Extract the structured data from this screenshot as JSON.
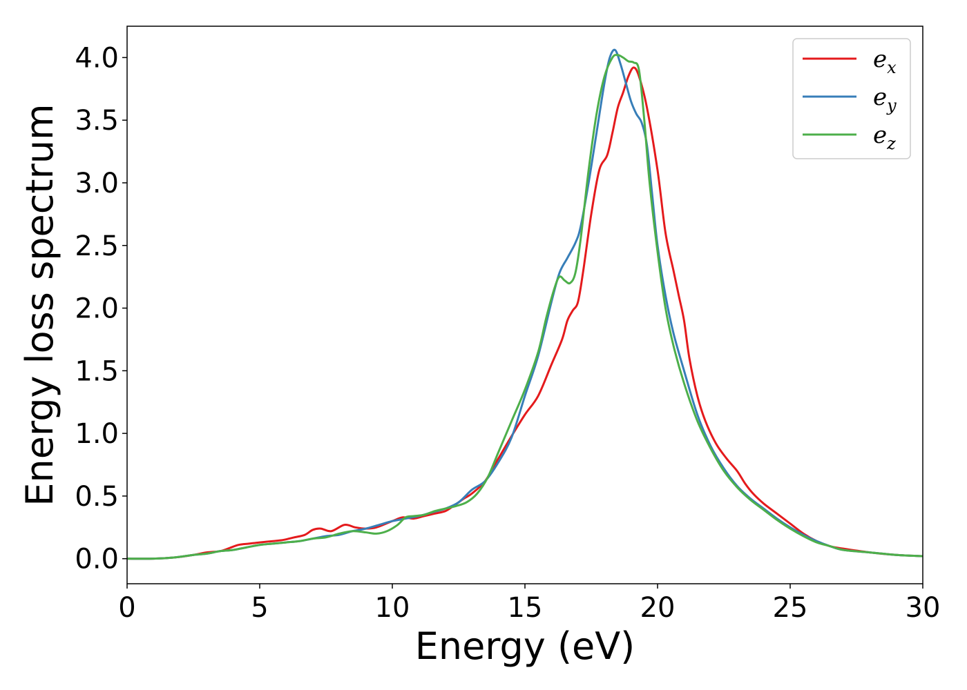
{
  "chart_data": {
    "type": "line",
    "title": "",
    "xlabel": "Energy (eV)",
    "ylabel": "Energy loss spectrum",
    "xlim": [
      0,
      30
    ],
    "ylim": [
      -0.2,
      4.25
    ],
    "xticks": [
      0,
      5,
      10,
      15,
      20,
      25,
      30
    ],
    "xtick_labels": [
      "0",
      "5",
      "10",
      "15",
      "20",
      "25",
      "30"
    ],
    "yticks": [
      0.0,
      0.5,
      1.0,
      1.5,
      2.0,
      2.5,
      3.0,
      3.5,
      4.0
    ],
    "ytick_labels": [
      "0.0",
      "0.5",
      "1.0",
      "1.5",
      "2.0",
      "2.5",
      "3.0",
      "3.5",
      "4.0"
    ],
    "grid": false,
    "legend_position": "top-right",
    "series": [
      {
        "name": "e_x",
        "label_main": "e",
        "label_sub": "x",
        "color": "#e41a1c",
        "x": [
          0,
          1,
          1.8,
          2.5,
          3,
          3.5,
          3.8,
          4.2,
          4.6,
          5,
          5.5,
          5.9,
          6.3,
          6.7,
          7,
          7.3,
          7.7,
          8.2,
          8.6,
          9,
          9.4,
          10,
          10.4,
          10.8,
          11.2,
          11.6,
          12,
          12.3,
          12.7,
          13,
          13.5,
          14,
          14.5,
          15,
          15.5,
          16,
          16.4,
          16.6,
          16.8,
          17,
          17.2,
          17.5,
          17.8,
          18.1,
          18.3,
          18.5,
          18.7,
          18.9,
          19.1,
          19.3,
          19.6,
          20,
          20.3,
          20.6,
          20.8,
          21,
          21.2,
          21.5,
          21.8,
          22.2,
          22.6,
          23,
          23.3,
          23.6,
          24,
          24.5,
          25,
          25.5,
          26,
          26.5,
          27,
          28,
          29,
          30
        ],
        "y": [
          0.0,
          0.0,
          0.01,
          0.03,
          0.05,
          0.06,
          0.08,
          0.11,
          0.12,
          0.13,
          0.14,
          0.15,
          0.17,
          0.19,
          0.23,
          0.24,
          0.22,
          0.27,
          0.25,
          0.24,
          0.25,
          0.3,
          0.33,
          0.32,
          0.34,
          0.36,
          0.38,
          0.42,
          0.48,
          0.52,
          0.62,
          0.8,
          0.98,
          1.15,
          1.3,
          1.55,
          1.75,
          1.9,
          1.98,
          2.05,
          2.3,
          2.75,
          3.1,
          3.22,
          3.4,
          3.6,
          3.72,
          3.85,
          3.92,
          3.85,
          3.6,
          3.1,
          2.6,
          2.3,
          2.1,
          1.9,
          1.6,
          1.3,
          1.1,
          0.92,
          0.8,
          0.7,
          0.6,
          0.52,
          0.44,
          0.36,
          0.28,
          0.2,
          0.14,
          0.1,
          0.08,
          0.05,
          0.03,
          0.02
        ]
      },
      {
        "name": "e_y",
        "label_main": "e",
        "label_sub": "y",
        "color": "#377eb8",
        "x": [
          0,
          1,
          1.8,
          2.5,
          3,
          3.5,
          4,
          4.5,
          5,
          5.5,
          6,
          6.5,
          7,
          7.5,
          8,
          8.5,
          9,
          9.5,
          10,
          10.5,
          11,
          11.5,
          12,
          12.5,
          13,
          13.5,
          14,
          14.5,
          15,
          15.5,
          16,
          16.3,
          16.6,
          16.9,
          17.1,
          17.4,
          17.7,
          18,
          18.2,
          18.4,
          18.6,
          18.8,
          19,
          19.2,
          19.4,
          19.6,
          19.8,
          20,
          20.3,
          20.6,
          21,
          21.5,
          22,
          22.5,
          23,
          23.5,
          24,
          24.5,
          25,
          25.5,
          26,
          26.5,
          27,
          28,
          29,
          30
        ],
        "y": [
          0.0,
          0.0,
          0.01,
          0.03,
          0.04,
          0.06,
          0.07,
          0.09,
          0.11,
          0.12,
          0.13,
          0.14,
          0.16,
          0.18,
          0.19,
          0.22,
          0.24,
          0.27,
          0.3,
          0.32,
          0.34,
          0.37,
          0.4,
          0.45,
          0.55,
          0.62,
          0.77,
          0.97,
          1.3,
          1.62,
          2.05,
          2.28,
          2.4,
          2.52,
          2.65,
          3.0,
          3.4,
          3.8,
          4.0,
          4.06,
          3.95,
          3.8,
          3.65,
          3.55,
          3.48,
          3.3,
          2.9,
          2.5,
          2.1,
          1.8,
          1.5,
          1.15,
          0.9,
          0.72,
          0.58,
          0.48,
          0.4,
          0.32,
          0.25,
          0.19,
          0.14,
          0.1,
          0.07,
          0.05,
          0.03,
          0.02
        ]
      },
      {
        "name": "e_z",
        "label_main": "e",
        "label_sub": "z",
        "color": "#4daf4a",
        "x": [
          0,
          1,
          1.8,
          2.5,
          3,
          3.5,
          4,
          4.5,
          5,
          5.5,
          6,
          6.5,
          7,
          7.5,
          8,
          8.5,
          9,
          9.4,
          9.8,
          10.2,
          10.5,
          10.8,
          11.2,
          11.6,
          12,
          12.4,
          12.8,
          13.2,
          13.6,
          14,
          14.5,
          15,
          15.5,
          15.8,
          16.1,
          16.3,
          16.5,
          16.7,
          16.9,
          17.1,
          17.4,
          17.7,
          18,
          18.3,
          18.5,
          18.7,
          18.9,
          19.1,
          19.3,
          19.5,
          19.7,
          20,
          20.3,
          20.6,
          21,
          21.5,
          22,
          22.5,
          23,
          23.5,
          24,
          24.5,
          25,
          25.5,
          26,
          26.5,
          27,
          28,
          29,
          30
        ],
        "y": [
          0.0,
          0.0,
          0.01,
          0.03,
          0.04,
          0.06,
          0.07,
          0.09,
          0.11,
          0.12,
          0.13,
          0.14,
          0.16,
          0.17,
          0.2,
          0.22,
          0.21,
          0.2,
          0.22,
          0.27,
          0.33,
          0.34,
          0.35,
          0.38,
          0.4,
          0.42,
          0.45,
          0.52,
          0.65,
          0.85,
          1.1,
          1.35,
          1.65,
          1.92,
          2.15,
          2.25,
          2.22,
          2.2,
          2.28,
          2.55,
          3.1,
          3.55,
          3.85,
          4.0,
          4.02,
          4.0,
          3.97,
          3.96,
          3.9,
          3.5,
          3.0,
          2.45,
          2.0,
          1.7,
          1.4,
          1.1,
          0.88,
          0.7,
          0.57,
          0.47,
          0.39,
          0.31,
          0.24,
          0.18,
          0.13,
          0.1,
          0.07,
          0.05,
          0.03,
          0.02
        ]
      }
    ]
  }
}
